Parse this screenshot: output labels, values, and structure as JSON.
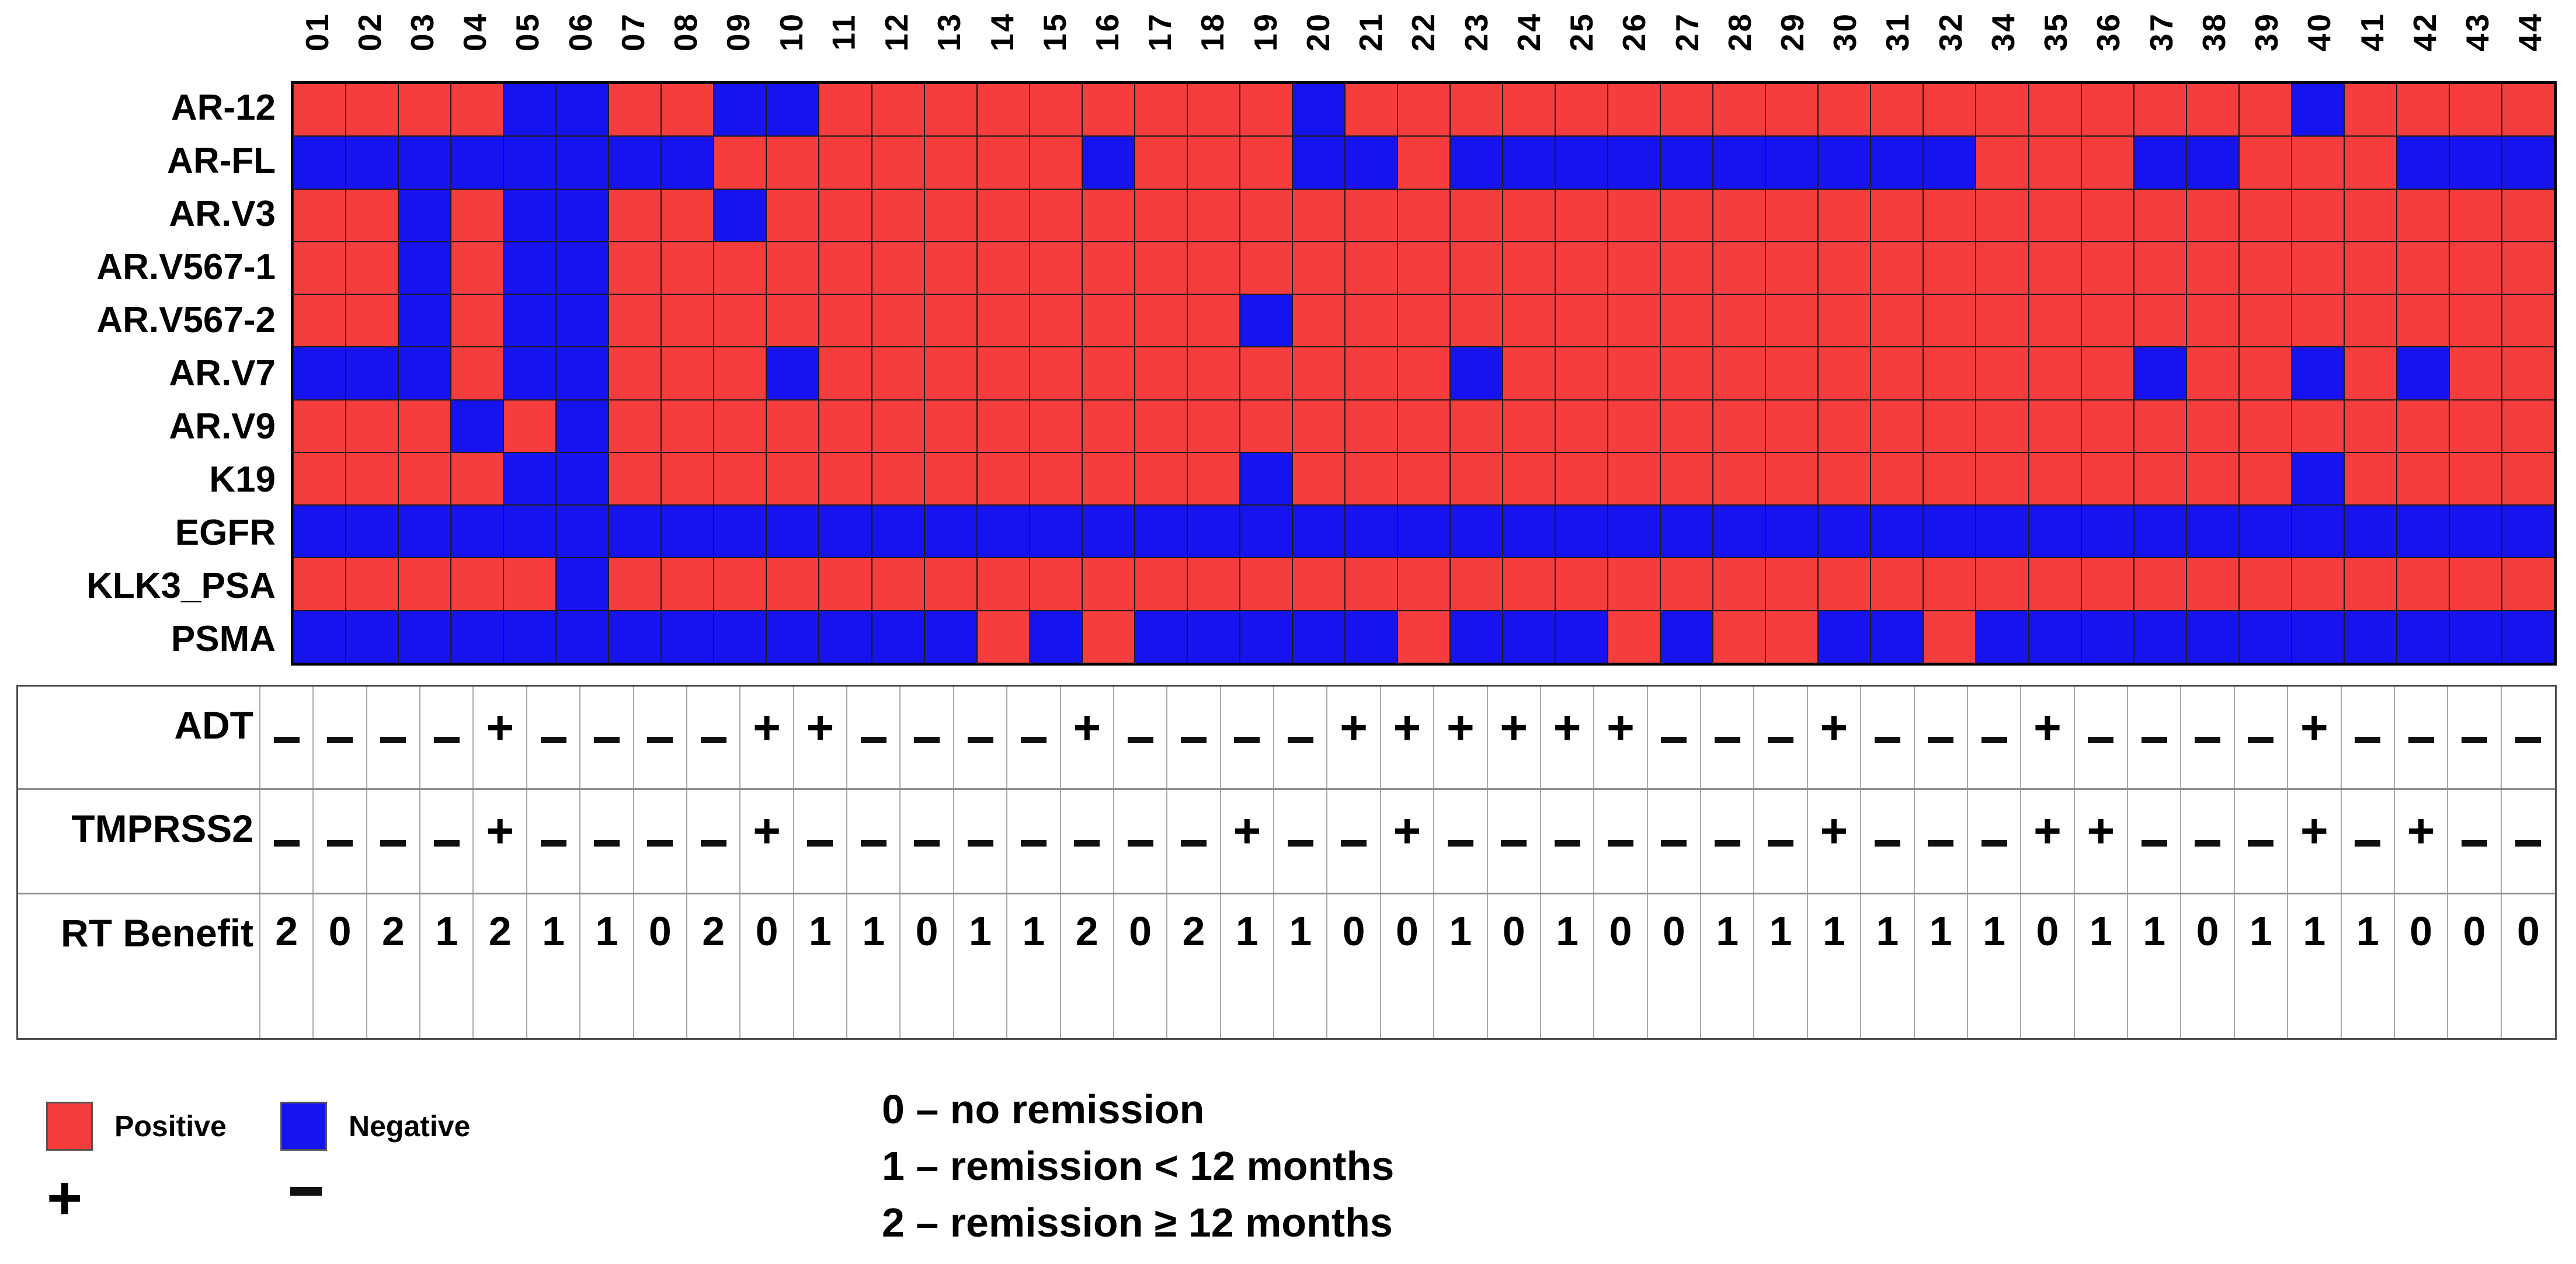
{
  "legend": {
    "positive_label": "Positive",
    "negative_label": "Negative",
    "plus_symbol": "+",
    "minus_symbol": "−",
    "positive_color": "#f43d3c",
    "negative_color": "#1613ef",
    "remission_lines": [
      "0 – no remission",
      "1 – remission < 12 months",
      "2 – remission ≥ 12 months"
    ]
  },
  "chart_data": {
    "type": "heatmap",
    "title": "",
    "columns": [
      "01",
      "02",
      "03",
      "04",
      "05",
      "06",
      "07",
      "08",
      "09",
      "10",
      "11",
      "12",
      "13",
      "14",
      "15",
      "16",
      "17",
      "18",
      "19",
      "20",
      "21",
      "22",
      "23",
      "24",
      "25",
      "26",
      "27",
      "28",
      "29",
      "30",
      "31",
      "32",
      "34",
      "35",
      "36",
      "37",
      "38",
      "39",
      "40",
      "41",
      "42",
      "43",
      "44"
    ],
    "cell_legend": {
      "P": "Positive",
      "N": "Negative"
    },
    "rows": [
      {
        "label": "AR-12",
        "values": "PPPPNNPPNNPPPPPPPPPNPPPPPPPPPPPPPPPPPPNPPPP"
      },
      {
        "label": "AR-FL",
        "values": "NNNNNNNNPPPPPPPNPPPNNPNNNNNNNNNNPPPNNPPPNNN"
      },
      {
        "label": "AR.V3",
        "values": "PPNPNNPPNPPPPPPPPPPPPPPPPPPPPPPPPPPPPPPPPPP"
      },
      {
        "label": "AR.V567-1",
        "values": "PPNPNNPPPPPPPPPPPPPPPPPPPPPPPPPPPPPPPPPPPPP"
      },
      {
        "label": "AR.V567-2",
        "values": "PPNPNNPPPPPPPPPPPPNPPPPPPPPPPPPPPPPPPPPPPPP"
      },
      {
        "label": "AR.V7",
        "values": "NNNPNNPPPNPPPPPPPPPPPPNPPPPPPPPPPPPNPPNPNPP"
      },
      {
        "label": "AR.V9",
        "values": "PPPNPNPPPPPPPPPPPPPPPPPPPPPPPPPPPPPPPPPPPPP"
      },
      {
        "label": "K19",
        "values": "PPPPNNPPPPPPPPPPPPNPPPPPPPPPPPPPPPPPPPNPPPP"
      },
      {
        "label": "EGFR",
        "values": "NNNNNNNNNNNNNNNNNNNNNNNNNNNNNNNNNNNNNNNNNNN"
      },
      {
        "label": "KLK3_PSA",
        "values": "PPPPPNPPPPPPPPPPPPPPPPPPPPPPPPPPPPPPPPPPPPP"
      },
      {
        "label": "PSMA",
        "values": "NNNNNNNNNNNNNPNPNNNNNPNNNPNPPNNPNNNNNNNNNNN"
      }
    ],
    "annotation_rows": [
      {
        "label": "ADT",
        "kind": "symbols",
        "values": "----+----++----+----++++++---+---+----+----"
      },
      {
        "label": "TMPRSS2",
        "kind": "symbols",
        "values": "----+----+--------+--+-------+---++---+-+--"
      },
      {
        "label": "RT Benefit",
        "kind": "digits",
        "values": "2021211020110112021100101001111110110111000"
      }
    ]
  }
}
